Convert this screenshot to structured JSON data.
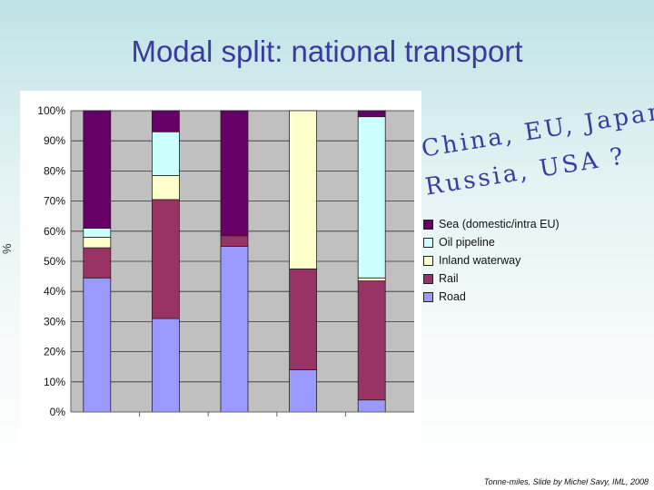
{
  "slide": {
    "title": "Modal split: national transport",
    "side_label": "%",
    "overlay_line1": "China, EU, Japan,",
    "overlay_line2": "Russia, USA ?",
    "footer": "Tonne-miles. Slide by Michel Savy, IML, 2008"
  },
  "colors": {
    "Road": "#9999ff",
    "Rail": "#993366",
    "Inland waterway": "#ffffcc",
    "Oil pipeline": "#ccffff",
    "Sea (domestic/intra EU)": "#660066"
  },
  "chart_data": {
    "type": "bar",
    "stacked": true,
    "categories": [
      "",
      "",
      "",
      "",
      ""
    ],
    "ylim": [
      0,
      100
    ],
    "yticks": [
      "0%",
      "10%",
      "20%",
      "30%",
      "40%",
      "50%",
      "60%",
      "70%",
      "80%",
      "90%",
      "100%"
    ],
    "grid": true,
    "legend_position": "right",
    "series": [
      {
        "name": "Road",
        "values": [
          44.5,
          31,
          55,
          14,
          4
        ]
      },
      {
        "name": "Rail",
        "values": [
          10,
          39.5,
          3.5,
          33.5,
          39.5
        ]
      },
      {
        "name": "Inland waterway",
        "values": [
          3.5,
          8,
          0,
          52.5,
          1
        ]
      },
      {
        "name": "Oil pipeline",
        "values": [
          3,
          14.5,
          0,
          0,
          53.5
        ]
      },
      {
        "name": "Sea (domestic/intra EU)",
        "values": [
          39,
          7,
          41.5,
          0,
          2
        ]
      }
    ],
    "legend_order": [
      "Sea (domestic/intra EU)",
      "Oil pipeline",
      "Inland waterway",
      "Rail",
      "Road"
    ]
  }
}
